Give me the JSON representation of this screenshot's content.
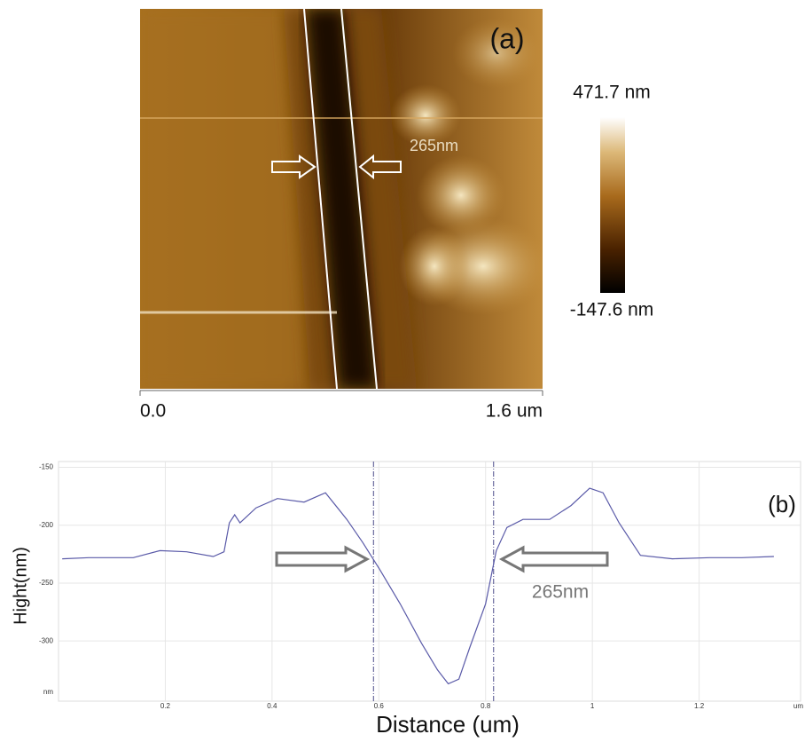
{
  "image_panel": {
    "label": "(a)",
    "annotation": "265nm",
    "colorbar_max": "471.7 nm",
    "colorbar_min": "-147.6 nm",
    "x_start": "0.0",
    "x_end": "1.6 um"
  },
  "chart_data": {
    "type": "line",
    "label": "(b)",
    "annotation": "265nm",
    "xlabel": "Distance (um)",
    "ylabel": "Hight(nm)",
    "x_unit": "um",
    "y_unit": "nm",
    "x": [
      0.007,
      0.057,
      0.14,
      0.19,
      0.24,
      0.29,
      0.31,
      0.32,
      0.33,
      0.34,
      0.37,
      0.41,
      0.46,
      0.49,
      0.5,
      0.54,
      0.57,
      0.6,
      0.64,
      0.68,
      0.71,
      0.73,
      0.75,
      0.77,
      0.8,
      0.82,
      0.84,
      0.87,
      0.92,
      0.96,
      0.995,
      1.02,
      1.05,
      1.09,
      1.15,
      1.22,
      1.28,
      1.34
    ],
    "values": [
      -229,
      -228,
      -228,
      -222,
      -223,
      -227,
      -223,
      -198,
      -191,
      -198,
      -185,
      -177,
      -180,
      -174,
      -172,
      -195,
      -215,
      -237,
      -268,
      -302,
      -325,
      -337,
      -333,
      -306,
      -268,
      -222,
      -202,
      -195,
      -195,
      -183,
      -168,
      -172,
      -198,
      -226,
      -229,
      -228,
      -228,
      -227
    ],
    "color": "#5a5aa8",
    "markers": [
      0.59,
      0.815
    ],
    "xlim": [
      0,
      1.39
    ],
    "ylim": [
      -352,
      -145
    ],
    "xticks": [
      0.2,
      0.4,
      0.6,
      0.8,
      1,
      1.2
    ],
    "yticks": [
      -150,
      -200,
      -250,
      -300
    ],
    "grid": true
  }
}
